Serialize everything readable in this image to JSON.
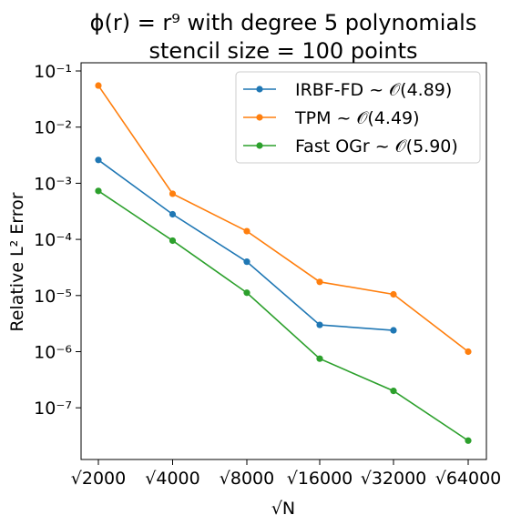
{
  "chart_data": {
    "type": "line",
    "title_line1": "ϕ(r) = r⁹ with degree 5 polynomials",
    "title_line2": "stencil size = 100 points",
    "xlabel": "√N",
    "ylabel": "Relative L² Error",
    "categories": [
      "√2000",
      "√4000",
      "√8000",
      "√16000",
      "√32000",
      "√64000"
    ],
    "x": [
      2000,
      4000,
      8000,
      16000,
      32000,
      64000
    ],
    "y_scale": "log",
    "ylim": [
      1.2e-08,
      0.14
    ],
    "yticks": [
      {
        "value": 1e-07,
        "label": "10⁻⁷"
      },
      {
        "value": 1e-06,
        "label": "10⁻⁶"
      },
      {
        "value": 1e-05,
        "label": "10⁻⁵"
      },
      {
        "value": 0.0001,
        "label": "10⁻⁴"
      },
      {
        "value": 0.001,
        "label": "10⁻³"
      },
      {
        "value": 0.01,
        "label": "10⁻²"
      },
      {
        "value": 0.1,
        "label": "10⁻¹"
      }
    ],
    "grid": false,
    "legend_position": "top-right",
    "series": [
      {
        "name": "IRBF-FD ~ 𝒪(4.89)",
        "color": "#1f77b4",
        "values": [
          0.0026,
          0.00028,
          4e-05,
          3e-06,
          2.4e-06,
          null
        ]
      },
      {
        "name": "TPM ~ 𝒪(4.49)",
        "color": "#ff7f0e",
        "values": [
          0.055,
          0.00065,
          0.00014,
          1.75e-05,
          1.05e-05,
          1e-06
        ]
      },
      {
        "name": "Fast OGr ~ 𝒪(5.90)",
        "color": "#2ca02c",
        "values": [
          0.00073,
          9.5e-05,
          1.12e-05,
          7.5e-07,
          2e-07,
          2.6e-08
        ]
      }
    ]
  }
}
